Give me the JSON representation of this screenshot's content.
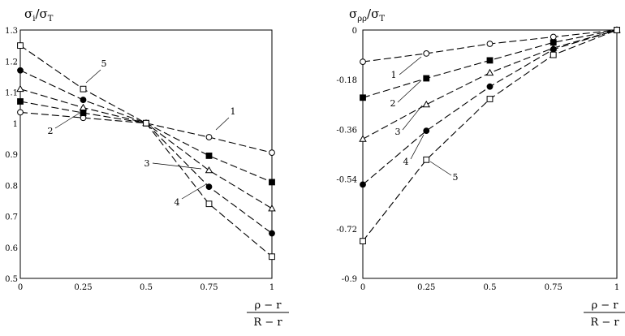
{
  "chart_data": [
    {
      "type": "line",
      "title": "σ_i/σ_T",
      "title_main": "σ",
      "title_sub": "i",
      "title_den": "/σ",
      "title_den_sub": "T",
      "xlabel_num": "ρ − r",
      "xlabel_den": "R − r",
      "xlim": [
        0,
        1
      ],
      "ylim": [
        0.5,
        1.3
      ],
      "x_ticks": [
        "0",
        "0.25",
        "0.5",
        "0.75",
        "1"
      ],
      "y_ticks": [
        "0.5",
        "0.6",
        "0.7",
        "0.8",
        "0.9",
        "1",
        "1.1",
        "1.2",
        "1.3"
      ],
      "grid": false,
      "series": [
        {
          "name": "1",
          "marker": "circle-open",
          "x": [
            0,
            0.25,
            0.5,
            0.75,
            1
          ],
          "y": [
            1.035,
            1.017,
            1.0,
            0.955,
            0.905
          ]
        },
        {
          "name": "2",
          "marker": "square-filled",
          "x": [
            0,
            0.25,
            0.5,
            0.75,
            1
          ],
          "y": [
            1.07,
            1.033,
            1.0,
            0.895,
            0.81
          ]
        },
        {
          "name": "3",
          "marker": "triangle-open",
          "x": [
            0,
            0.25,
            0.5,
            0.75,
            1
          ],
          "y": [
            1.11,
            1.05,
            1.0,
            0.848,
            0.725
          ]
        },
        {
          "name": "4",
          "marker": "circle-filled",
          "x": [
            0,
            0.25,
            0.5,
            0.75,
            1
          ],
          "y": [
            1.17,
            1.075,
            1.0,
            0.795,
            0.645
          ]
        },
        {
          "name": "5",
          "marker": "square-open",
          "x": [
            0,
            0.25,
            0.5,
            0.75,
            1
          ],
          "y": [
            1.25,
            1.11,
            1.0,
            0.74,
            0.57
          ]
        }
      ]
    },
    {
      "type": "line",
      "title": "σ_ρρ/σ_T",
      "title_main": "σ",
      "title_sub": "ρρ",
      "title_den": "/σ",
      "title_den_sub": "T",
      "xlabel_num": "ρ − r",
      "xlabel_den": "R − r",
      "xlim": [
        0,
        1
      ],
      "ylim": [
        -0.9,
        0
      ],
      "x_ticks": [
        "0",
        "0.25",
        "0.5",
        "0.75",
        "1"
      ],
      "y_ticks": [
        "0",
        "-0.18",
        "-0.36",
        "-0.54",
        "-0.72",
        "-0.9"
      ],
      "grid": false,
      "series": [
        {
          "name": "1",
          "marker": "circle-open",
          "x": [
            0,
            0.25,
            0.5,
            0.75,
            1
          ],
          "y": [
            -0.115,
            -0.085,
            -0.05,
            -0.025,
            0
          ]
        },
        {
          "name": "2",
          "marker": "square-filled",
          "x": [
            0,
            0.25,
            0.5,
            0.75,
            1
          ],
          "y": [
            -0.245,
            -0.175,
            -0.11,
            -0.045,
            0
          ]
        },
        {
          "name": "3",
          "marker": "triangle-open",
          "x": [
            0,
            0.25,
            0.5,
            0.75,
            1
          ],
          "y": [
            -0.395,
            -0.27,
            -0.155,
            -0.065,
            0
          ]
        },
        {
          "name": "4",
          "marker": "circle-filled",
          "x": [
            0,
            0.25,
            0.5,
            0.75,
            1
          ],
          "y": [
            -0.56,
            -0.365,
            -0.205,
            -0.07,
            0
          ]
        },
        {
          "name": "5",
          "marker": "square-open",
          "x": [
            0,
            0.25,
            0.5,
            0.75,
            1
          ],
          "y": [
            -0.765,
            -0.47,
            -0.25,
            -0.09,
            0
          ]
        }
      ]
    }
  ]
}
